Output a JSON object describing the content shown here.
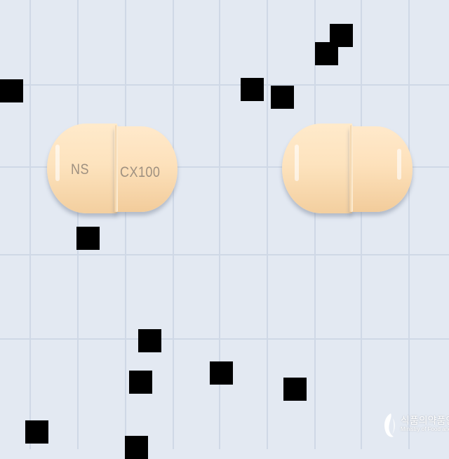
{
  "image": {
    "background_color": "#e3e9f2",
    "grid_color": "#cfd8e6",
    "capsules": [
      {
        "side_a_imprint": "NS",
        "side_b_imprint": "CX100",
        "color": "#fde3be"
      },
      {
        "side_a_imprint": "",
        "side_b_imprint": "",
        "color": "#fde3be"
      }
    ],
    "watermark": {
      "korean": "식품의약품안전",
      "english": "Ministry of Food and",
      "icon": "swirl-logo-icon"
    }
  }
}
